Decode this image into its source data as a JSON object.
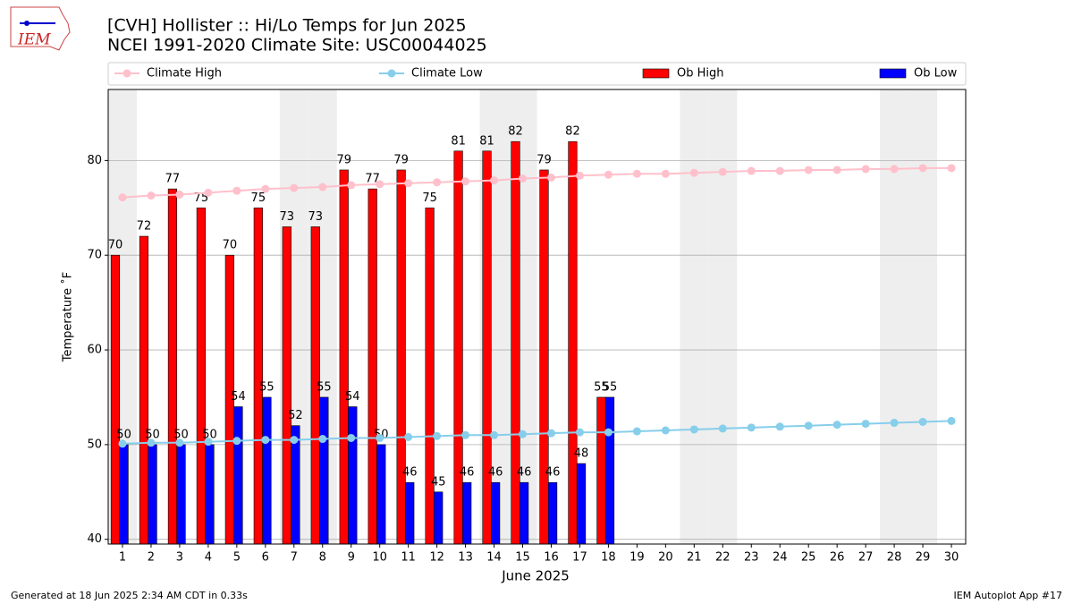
{
  "chart_data": {
    "type": "bar",
    "title": "[CVH] Hollister :: Hi/Lo Temps for Jun 2025",
    "subtitle": "NCEI 1991-2020 Climate Site: USC00044025",
    "logo_text": "IEM",
    "xlabel": "June 2025",
    "ylabel": "Temperature ˚F",
    "footer_left": "Generated at 18 Jun 2025 2:34 AM CDT in 0.33s",
    "footer_right": "IEM Autoplot App #17",
    "x": [
      1,
      2,
      3,
      4,
      5,
      6,
      7,
      8,
      9,
      10,
      11,
      12,
      13,
      14,
      15,
      16,
      17,
      18,
      19,
      20,
      21,
      22,
      23,
      24,
      25,
      26,
      27,
      28,
      29,
      30
    ],
    "xlim": [
      0.5,
      30.5
    ],
    "xticks": [
      1,
      2,
      3,
      4,
      5,
      6,
      7,
      8,
      9,
      10,
      11,
      12,
      13,
      14,
      15,
      16,
      17,
      18,
      19,
      20,
      21,
      22,
      23,
      24,
      25,
      26,
      27,
      28,
      29,
      30
    ],
    "ylim": [
      39.5,
      87.5
    ],
    "yticks": [
      40,
      50,
      60,
      70,
      80
    ],
    "grid": true,
    "shaded_days": [
      1,
      7,
      8,
      14,
      15,
      21,
      22,
      28,
      29
    ],
    "shade_color": "#eeeeee",
    "series": [
      {
        "name": "Climate High",
        "type": "line",
        "color": "#ffc0cb",
        "values": [
          76.1,
          76.3,
          76.4,
          76.6,
          76.8,
          77.0,
          77.1,
          77.2,
          77.4,
          77.5,
          77.6,
          77.7,
          77.8,
          77.9,
          78.1,
          78.2,
          78.4,
          78.5,
          78.6,
          78.6,
          78.7,
          78.8,
          78.9,
          78.9,
          79.0,
          79.0,
          79.1,
          79.1,
          79.2,
          79.2
        ]
      },
      {
        "name": "Climate Low",
        "type": "line",
        "color": "#87ceeb",
        "values": [
          50.1,
          50.2,
          50.2,
          50.3,
          50.4,
          50.5,
          50.5,
          50.6,
          50.7,
          50.7,
          50.8,
          50.9,
          51.0,
          51.0,
          51.1,
          51.2,
          51.3,
          51.3,
          51.4,
          51.5,
          51.6,
          51.7,
          51.8,
          51.9,
          52.0,
          52.1,
          52.2,
          52.3,
          52.4,
          52.5
        ]
      },
      {
        "name": "Ob High",
        "type": "bar",
        "color": "#ff0000",
        "values": [
          70,
          72,
          77,
          75,
          70,
          75,
          73,
          73,
          79,
          77,
          79,
          75,
          81,
          81,
          82,
          79,
          82,
          55,
          null,
          null,
          null,
          null,
          null,
          null,
          null,
          null,
          null,
          null,
          null,
          null
        ]
      },
      {
        "name": "Ob Low",
        "type": "bar",
        "color": "#0000ff",
        "values": [
          50,
          50,
          50,
          50,
          54,
          55,
          52,
          55,
          54,
          50,
          46,
          45,
          46,
          46,
          46,
          46,
          48,
          55,
          null,
          null,
          null,
          null,
          null,
          null,
          null,
          null,
          null,
          null,
          null,
          null
        ]
      }
    ]
  }
}
